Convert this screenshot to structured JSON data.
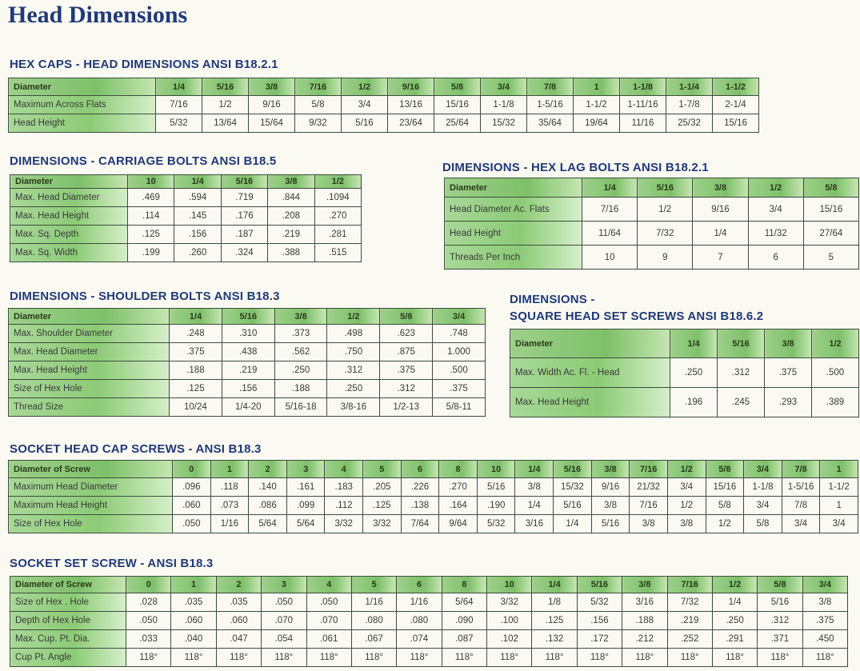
{
  "page": {
    "title": "Head Dimensions"
  },
  "tables": {
    "hex_caps": {
      "title": "HEX CAPS - HEAD DIMENSIONS ANSI B18.2.1",
      "header_label": "Diameter",
      "columns": [
        "1/4",
        "5/16",
        "3/8",
        "7/16",
        "1/2",
        "9/16",
        "5/8",
        "3/4",
        "7/8",
        "1",
        "1-1/8",
        "1-1/4",
        "1-1/2"
      ],
      "rows": [
        {
          "label": "Maximum Across Flats",
          "values": [
            "7/16",
            "1/2",
            "9/16",
            "5/8",
            "3/4",
            "13/16",
            "15/16",
            "1-1/8",
            "1-5/16",
            "1-1/2",
            "1-11/16",
            "1-7/8",
            "2-1/4"
          ]
        },
        {
          "label": "Head Height",
          "values": [
            "5/32",
            "13/64",
            "15/64",
            "9/32",
            "5/16",
            "23/64",
            "25/64",
            "15/32",
            "35/64",
            "19/64",
            "11/16",
            "25/32",
            "15/16"
          ]
        }
      ]
    },
    "carriage_bolts": {
      "title": "DIMENSIONS - CARRIAGE BOLTS ANSI B18.5",
      "header_label": "Diameter",
      "columns": [
        "10",
        "1/4",
        "5/16",
        "3/8",
        "1/2"
      ],
      "rows": [
        {
          "label": "Max. Head Diameter",
          "values": [
            ".469",
            ".594",
            ".719",
            ".844",
            ".1094"
          ]
        },
        {
          "label": "Max. Head Height",
          "values": [
            ".114",
            ".145",
            ".176",
            ".208",
            ".270"
          ]
        },
        {
          "label": "Max. Sq. Depth",
          "values": [
            ".125",
            ".156",
            ".187",
            ".219",
            ".281"
          ]
        },
        {
          "label": "Max. Sq. Width",
          "values": [
            ".199",
            ".260",
            ".324",
            ".388",
            ".515"
          ]
        }
      ]
    },
    "hex_lag_bolts": {
      "title": "DIMENSIONS - HEX LAG BOLTS ANSI B18.2.1",
      "header_label": "Diameter",
      "columns": [
        "1/4",
        "5/16",
        "3/8",
        "1/2",
        "5/8"
      ],
      "rows": [
        {
          "label": "Head Diameter Ac. Flats",
          "values": [
            "7/16",
            "1/2",
            "9/16",
            "3/4",
            "15/16"
          ]
        },
        {
          "label": "Head Height",
          "values": [
            "11/64",
            "7/32",
            "1/4",
            "11/32",
            "27/64"
          ]
        },
        {
          "label": "Threads Per Inch",
          "values": [
            "10",
            "9",
            "7",
            "6",
            "5"
          ]
        }
      ]
    },
    "shoulder_bolts": {
      "title": "DIMENSIONS - SHOULDER BOLTS ANSI B18.3",
      "header_label": "Diameter",
      "columns": [
        "1/4",
        "5/16",
        "3/8",
        "1/2",
        "5/8",
        "3/4"
      ],
      "rows": [
        {
          "label": "Max. Shoulder Diameter",
          "values": [
            ".248",
            ".310",
            ".373",
            ".498",
            ".623",
            ".748"
          ]
        },
        {
          "label": "Max. Head Diameter",
          "values": [
            ".375",
            ".438",
            ".562",
            ".750",
            ".875",
            "1.000"
          ]
        },
        {
          "label": "Max. Head Height",
          "values": [
            ".188",
            ".219",
            ".250",
            ".312",
            ".375",
            ".500"
          ]
        },
        {
          "label": "Size of Hex Hole",
          "values": [
            ".125",
            ".156",
            ".188",
            ".250",
            ".312",
            ".375"
          ]
        },
        {
          "label": "Thread Size",
          "values": [
            "10/24",
            "1/4-20",
            "5/16-18",
            "3/8-16",
            "1/2-13",
            "5/8-11"
          ]
        }
      ]
    },
    "square_head_set_screws": {
      "title_line1": "DIMENSIONS -",
      "title_line2": "SQUARE HEAD SET SCREWS ANSI B18.6.2",
      "header_label": "Diameter",
      "columns": [
        "1/4",
        "5/16",
        "3/8",
        "1/2"
      ],
      "rows": [
        {
          "label": "Max. Width Ac. Fl. - Head",
          "values": [
            ".250",
            ".312",
            ".375",
            ".500"
          ]
        },
        {
          "label": "Max. Head Height",
          "values": [
            ".196",
            ".245",
            ".293",
            ".389"
          ]
        }
      ]
    },
    "socket_head_cap_screws": {
      "title": "SOCKET HEAD CAP SCREWS - ANSI B18.3",
      "header_label": "Diameter of Screw",
      "columns": [
        "0",
        "1",
        "2",
        "3",
        "4",
        "5",
        "6",
        "8",
        "10",
        "1/4",
        "5/16",
        "3/8",
        "7/16",
        "1/2",
        "5/8",
        "3/4",
        "7/8",
        "1"
      ],
      "rows": [
        {
          "label": "Maximum Head Diameter",
          "values": [
            ".096",
            ".118",
            ".140",
            ".161",
            ".183",
            ".205",
            ".226",
            ".270",
            "5/16",
            "3/8",
            "15/32",
            "9/16",
            "21/32",
            "3/4",
            "15/16",
            "1-1/8",
            "1-5/16",
            "1-1/2"
          ]
        },
        {
          "label": "Maximum Head Height",
          "values": [
            ".060",
            ".073",
            ".086",
            ".099",
            ".112",
            ".125",
            ".138",
            ".164",
            ".190",
            "1/4",
            "5/16",
            "3/8",
            "7/16",
            "1/2",
            "5/8",
            "3/4",
            "7/8",
            "1"
          ]
        },
        {
          "label": "Size of Hex Hole",
          "values": [
            ".050",
            "1/16",
            "5/64",
            "5/64",
            "3/32",
            "3/32",
            "7/64",
            "9/64",
            "5/32",
            "3/16",
            "1/4",
            "5/16",
            "3/8",
            "3/8",
            "1/2",
            "5/8",
            "3/4",
            "3/4"
          ]
        }
      ]
    },
    "socket_set_screw": {
      "title": "SOCKET SET SCREW - ANSI B18.3",
      "header_label": "Diameter of Screw",
      "columns": [
        "0",
        "1",
        "2",
        "3",
        "4",
        "5",
        "6",
        "8",
        "10",
        "1/4",
        "5/16",
        "3/8",
        "7/16",
        "1/2",
        "5/8",
        "3/4"
      ],
      "rows": [
        {
          "label": "Size of Hex . Hole",
          "values": [
            ".028",
            ".035",
            ".035",
            ".050",
            ".050",
            "1/16",
            "1/16",
            "5/64",
            "3/32",
            "1/8",
            "5/32",
            "3/16",
            "7/32",
            "1/4",
            "5/16",
            "3/8"
          ]
        },
        {
          "label": "Depth of Hex Hole",
          "values": [
            ".050",
            ".060",
            ".060",
            ".070",
            ".070",
            ".080",
            ".080",
            ".090",
            ".100",
            ".125",
            ".156",
            ".188",
            ".219",
            ".250",
            ".312",
            ".375"
          ]
        },
        {
          "label": "Max. Cup. Pt. Dia.",
          "values": [
            ".033",
            ".040",
            ".047",
            ".054",
            ".061",
            ".067",
            ".074",
            ".087",
            ".102",
            ".132",
            ".172",
            ".212",
            ".252",
            ".291",
            ".371",
            ".450"
          ]
        },
        {
          "label": "Cup Pt. Angle",
          "values": [
            "118°",
            "118°",
            "118°",
            "118°",
            "118°",
            "118°",
            "118°",
            "118°",
            "118°",
            "118°",
            "118°",
            "118°",
            "118°",
            "118°",
            "118°",
            "118°"
          ]
        }
      ]
    }
  }
}
